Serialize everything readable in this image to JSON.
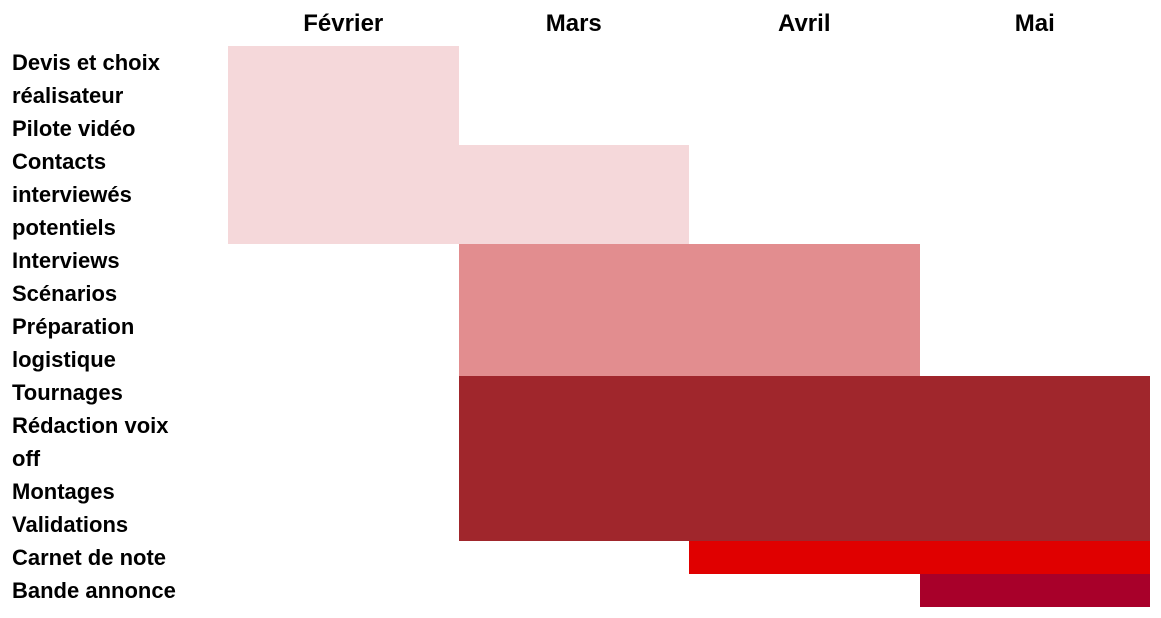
{
  "chart_data": {
    "type": "gantt",
    "title": "",
    "months": [
      "Février",
      "Mars",
      "Avril",
      "Mai"
    ],
    "task_lines": [
      "Devis et choix",
      "réalisateur",
      "Pilote vidéo",
      "Contacts",
      "interviewés",
      "potentiels",
      "Interviews",
      "Scénarios",
      "Préparation",
      "logistique",
      "Tournages",
      "Rédaction voix",
      "off",
      "Montages",
      "Validations",
      "Carnet de note",
      "Bande annonce"
    ],
    "bars": [
      {
        "tasks": "Devis et choix réalisateur / Pilote vidéo",
        "start_month": "Février",
        "end_month": "Février",
        "line_start": 1,
        "line_end": 3,
        "color": "#f5d8da"
      },
      {
        "tasks": "Contacts interviewés potentiels",
        "start_month": "Février",
        "end_month": "Mars",
        "line_start": 4,
        "line_end": 6,
        "color": "#f5d8da"
      },
      {
        "tasks": "Interviews / Scénarios / Préparation logistique",
        "start_month": "Mars",
        "end_month": "Avril",
        "line_start": 7,
        "line_end": 10,
        "color": "#e28d8f"
      },
      {
        "tasks": "Tournages / Rédaction voix off / Montages / Validations",
        "start_month": "Mars",
        "end_month": "Mai",
        "line_start": 11,
        "line_end": 15,
        "color": "#a0262c"
      },
      {
        "tasks": "Carnet de note",
        "start_month": "Avril",
        "end_month": "Mai",
        "line_start": 16,
        "line_end": 16,
        "color": "#e00000"
      },
      {
        "tasks": "Bande annonce",
        "start_month": "Mai",
        "end_month": "Mai",
        "line_start": 17,
        "line_end": 17,
        "color": "#a8002a"
      }
    ]
  }
}
